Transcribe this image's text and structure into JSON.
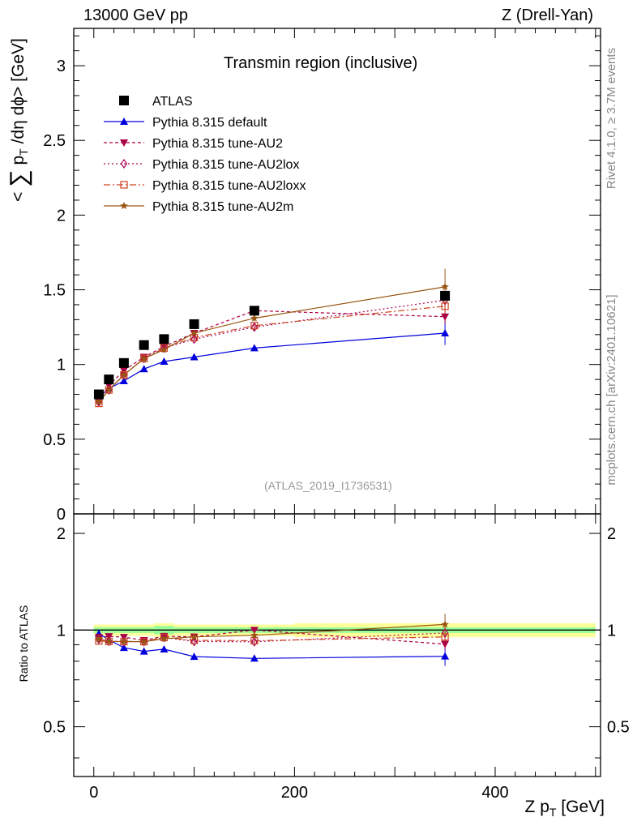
{
  "header": {
    "left": "13000 GeV pp",
    "right": "Z (Drell-Yan)"
  },
  "side_labels": {
    "rivet": "Rivet 4.1.0, ≥ 3.7M events",
    "mcplots": "mcplots.cern.ch [arXiv:2401.10621]"
  },
  "chart_data": {
    "type": "scatter",
    "title": "Transmin region (inclusive)",
    "analysis_tag": "(ATLAS_2019_I1736531)",
    "ylabel": "< ∑ p_T /dη dϕ> [GeV]",
    "ylabel_parts": {
      "lt": "<",
      "sum": "∑",
      "p": "p",
      "T": "T",
      "rest": "/dη dϕ> [GeV]"
    },
    "xlabel_parts": {
      "pre": "Z p",
      "sub": "T",
      "post": "[GeV]"
    },
    "ratio_ylabel": "Ratio to ATLAS",
    "xlim": [
      -20,
      505
    ],
    "ylim": [
      0,
      3.25
    ],
    "ratio_ylim": [
      0.35,
      2.3
    ],
    "x_ticks": [
      0,
      200,
      400
    ],
    "x_tick_labels": [
      "0",
      "200",
      "400"
    ],
    "y_ticks": [
      0,
      0.5,
      1,
      1.5,
      2,
      2.5,
      3
    ],
    "y_tick_labels": [
      "0",
      "0.5",
      "1",
      "1.5",
      "2",
      "2.5",
      "3"
    ],
    "ratio_y_ticks": [
      0.5,
      1,
      2
    ],
    "ratio_y_tick_labels": [
      "0.5",
      "1",
      "2"
    ],
    "x": [
      5,
      15,
      30,
      50,
      70,
      100,
      160,
      350
    ],
    "data": {
      "name": "ATLAS",
      "values": [
        0.8,
        0.9,
        1.01,
        1.13,
        1.17,
        1.27,
        1.36,
        1.46
      ],
      "band_edges": [
        0,
        10,
        20,
        40,
        60,
        80,
        120,
        200,
        500
      ],
      "band_inner": [
        0.02,
        0.02,
        0.02,
        0.02,
        0.03,
        0.02,
        0.02,
        0.02
      ],
      "band_outer": [
        0.04,
        0.04,
        0.04,
        0.04,
        0.05,
        0.04,
        0.04,
        0.05
      ]
    },
    "series": [
      {
        "name": "Pythia 8.315 default",
        "color": "#0000dd",
        "marker": "triangle-up",
        "dash": "",
        "values": [
          0.78,
          0.84,
          0.89,
          0.97,
          1.02,
          1.05,
          1.11,
          1.21
        ],
        "errors": [
          0.02,
          0.01,
          0.01,
          0.01,
          0.01,
          0.01,
          0.02,
          0.08
        ]
      },
      {
        "name": "Pythia 8.315 tune-AU2",
        "color": "#aa0044",
        "marker": "triangle-down",
        "dash": "4,3",
        "values": [
          0.76,
          0.86,
          0.96,
          1.05,
          1.12,
          1.21,
          1.36,
          1.32
        ],
        "errors": [
          0.02,
          0.01,
          0.01,
          0.01,
          0.01,
          0.01,
          0.02,
          0.05
        ]
      },
      {
        "name": "Pythia 8.315 tune-AU2lox",
        "color": "#aa0055",
        "marker": "diamond-open",
        "dash": "2,3",
        "values": [
          0.75,
          0.83,
          0.93,
          1.04,
          1.11,
          1.17,
          1.25,
          1.43
        ],
        "errors": [
          0.02,
          0.01,
          0.01,
          0.01,
          0.01,
          0.01,
          0.02,
          0.06
        ]
      },
      {
        "name": "Pythia 8.315 tune-AU2loxx",
        "color": "#cc4422",
        "marker": "square-open",
        "dash": "8,3,2,3",
        "values": [
          0.74,
          0.83,
          0.93,
          1.04,
          1.11,
          1.18,
          1.26,
          1.39
        ],
        "errors": [
          0.02,
          0.01,
          0.01,
          0.01,
          0.01,
          0.01,
          0.02,
          0.06
        ]
      },
      {
        "name": "Pythia 8.315 tune-AU2m",
        "color": "#995511",
        "marker": "star",
        "dash": "",
        "values": [
          0.75,
          0.83,
          0.93,
          1.04,
          1.1,
          1.21,
          1.31,
          1.52
        ],
        "errors": [
          0.02,
          0.01,
          0.01,
          0.01,
          0.01,
          0.01,
          0.02,
          0.12
        ]
      }
    ]
  }
}
